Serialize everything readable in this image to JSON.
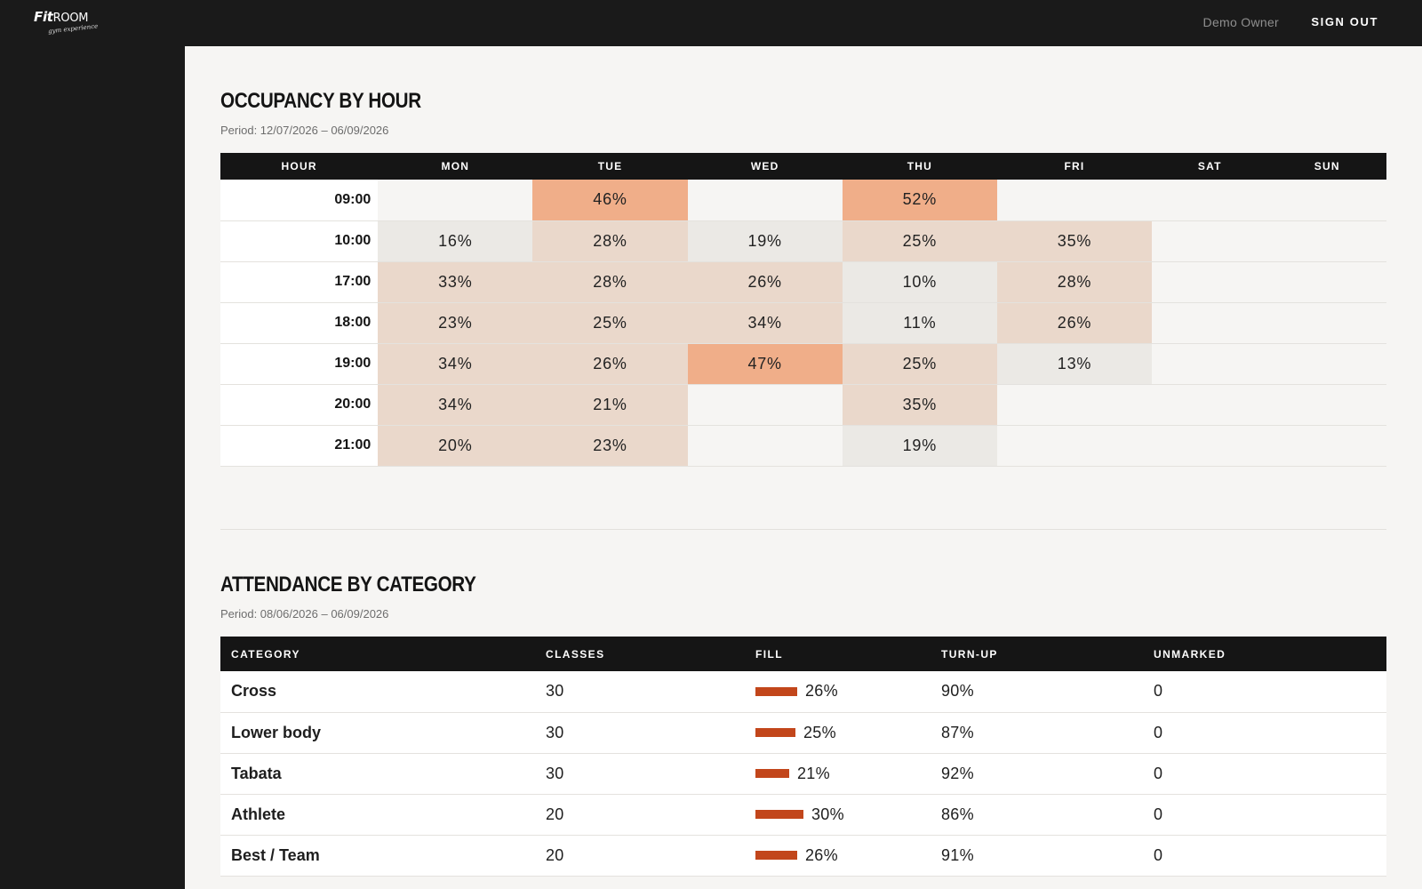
{
  "brand": {
    "name": "Fit",
    "name_room": "ROOM",
    "tagline": "gym experience"
  },
  "header": {
    "user": "Demo Owner",
    "sign_out": "SIGN OUT"
  },
  "occupancy": {
    "title": "OCCUPANCY BY HOUR",
    "period": "Period: 12/07/2026 – 06/09/2026",
    "columns": [
      "HOUR",
      "MON",
      "TUE",
      "WED",
      "THU",
      "FRI",
      "SAT",
      "SUN"
    ],
    "rows": [
      {
        "hour": "09:00",
        "cells": [
          null,
          "46%",
          null,
          "52%",
          null,
          null,
          null
        ]
      },
      {
        "hour": "10:00",
        "cells": [
          "16%",
          "28%",
          "19%",
          "25%",
          "35%",
          null,
          null
        ]
      },
      {
        "hour": "17:00",
        "cells": [
          "33%",
          "28%",
          "26%",
          "10%",
          "28%",
          null,
          null
        ]
      },
      {
        "hour": "18:00",
        "cells": [
          "23%",
          "25%",
          "34%",
          "11%",
          "26%",
          null,
          null
        ]
      },
      {
        "hour": "19:00",
        "cells": [
          "34%",
          "26%",
          "47%",
          "25%",
          "13%",
          null,
          null
        ]
      },
      {
        "hour": "20:00",
        "cells": [
          "34%",
          "21%",
          null,
          "35%",
          null,
          null,
          null
        ]
      },
      {
        "hour": "21:00",
        "cells": [
          "20%",
          "23%",
          null,
          "19%",
          null,
          null,
          null
        ]
      }
    ],
    "colors": {
      "low": "#ebe9e5",
      "mid": "#ead8cb",
      "high": "#f0ae89",
      "empty": "#f6f5f3"
    }
  },
  "attendance": {
    "title": "ATTENDANCE BY CATEGORY",
    "period": "Period: 08/06/2026 – 06/09/2026",
    "columns": [
      "CATEGORY",
      "CLASSES",
      "FILL",
      "TURN-UP",
      "UNMARKED"
    ],
    "rows": [
      {
        "category": "Cross",
        "classes": "30",
        "fill": "26%",
        "fill_value": 0.26,
        "turnup": "90%",
        "unmarked": "0"
      },
      {
        "category": "Lower body",
        "classes": "30",
        "fill": "25%",
        "fill_value": 0.25,
        "turnup": "87%",
        "unmarked": "0"
      },
      {
        "category": "Tabata",
        "classes": "30",
        "fill": "21%",
        "fill_value": 0.21,
        "turnup": "92%",
        "unmarked": "0"
      },
      {
        "category": "Athlete",
        "classes": "20",
        "fill": "30%",
        "fill_value": 0.3,
        "turnup": "86%",
        "unmarked": "0"
      },
      {
        "category": "Best / Team",
        "classes": "20",
        "fill": "26%",
        "fill_value": 0.26,
        "turnup": "91%",
        "unmarked": "0"
      }
    ],
    "bar_color": "#c2461b"
  }
}
